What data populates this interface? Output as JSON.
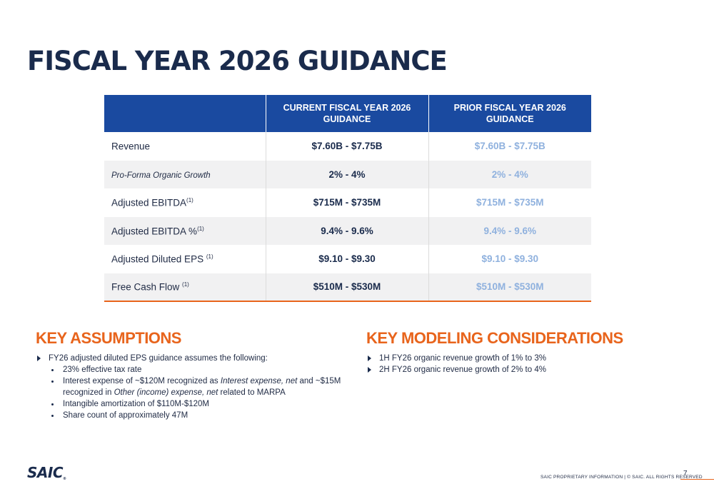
{
  "title": "FISCAL YEAR 2026 GUIDANCE",
  "table": {
    "headers": [
      "",
      "CURRENT FISCAL YEAR 2026 GUIDANCE",
      "PRIOR FISCAL YEAR 2026 GUIDANCE"
    ],
    "rows": [
      {
        "label": "Revenue",
        "note": "",
        "current": "$7.60B - $7.75B",
        "prior": "$7.60B - $7.75B"
      },
      {
        "label": "Pro-Forma Organic Growth",
        "note": "",
        "current": "2% - 4%",
        "prior": "2% - 4%"
      },
      {
        "label": "Adjusted EBITDA",
        "note": "(1)",
        "current": "$715M - $735M",
        "prior": "$715M - $735M"
      },
      {
        "label": "Adjusted EBITDA %",
        "note": "(1)",
        "current": "9.4% - 9.6%",
        "prior": "9.4% - 9.6%"
      },
      {
        "label": "Adjusted Diluted EPS ",
        "note": "(1)",
        "current": "$9.10 - $9.30",
        "prior": "$9.10 - $9.30"
      },
      {
        "label": "Free Cash Flow ",
        "note": "(1)",
        "current": "$510M - $530M",
        "prior": "$510M - $530M"
      }
    ]
  },
  "key_assumptions": {
    "heading": "KEY ASSUMPTIONS",
    "bullet": "FY26 adjusted diluted EPS guidance assumes the following:",
    "sub_items": {
      "tax_rate": "23% effective tax rate",
      "interest_a": "Interest expense of ~$120M recognized as ",
      "interest_b": "Interest expense, net",
      "interest_c": " and ~$15M recognized in ",
      "interest_d": "Other (income) expense, net",
      "interest_e": " related to MARPA",
      "amortization": "Intangible amortization of $110M-$120M",
      "share_count": "Share count of approximately 47M"
    }
  },
  "key_modeling": {
    "heading": "KEY MODELING CONSIDERATIONS",
    "items": [
      "1H FY26 organic revenue growth of 1% to 3%",
      "2H FY26 organic revenue growth of 2% to 4%"
    ]
  },
  "footer": {
    "logo": "SAIC",
    "logo_mark": "®",
    "text": "SAIC PROPRIETARY INFORMATION  |  © SAIC. ALL RIGHTS RESERVED",
    "page_number": "7"
  },
  "colors": {
    "navy": "#1a2b4c",
    "header_blue": "#1a4aa0",
    "orange": "#e8641c",
    "prior_blue": "#8fb1de"
  }
}
